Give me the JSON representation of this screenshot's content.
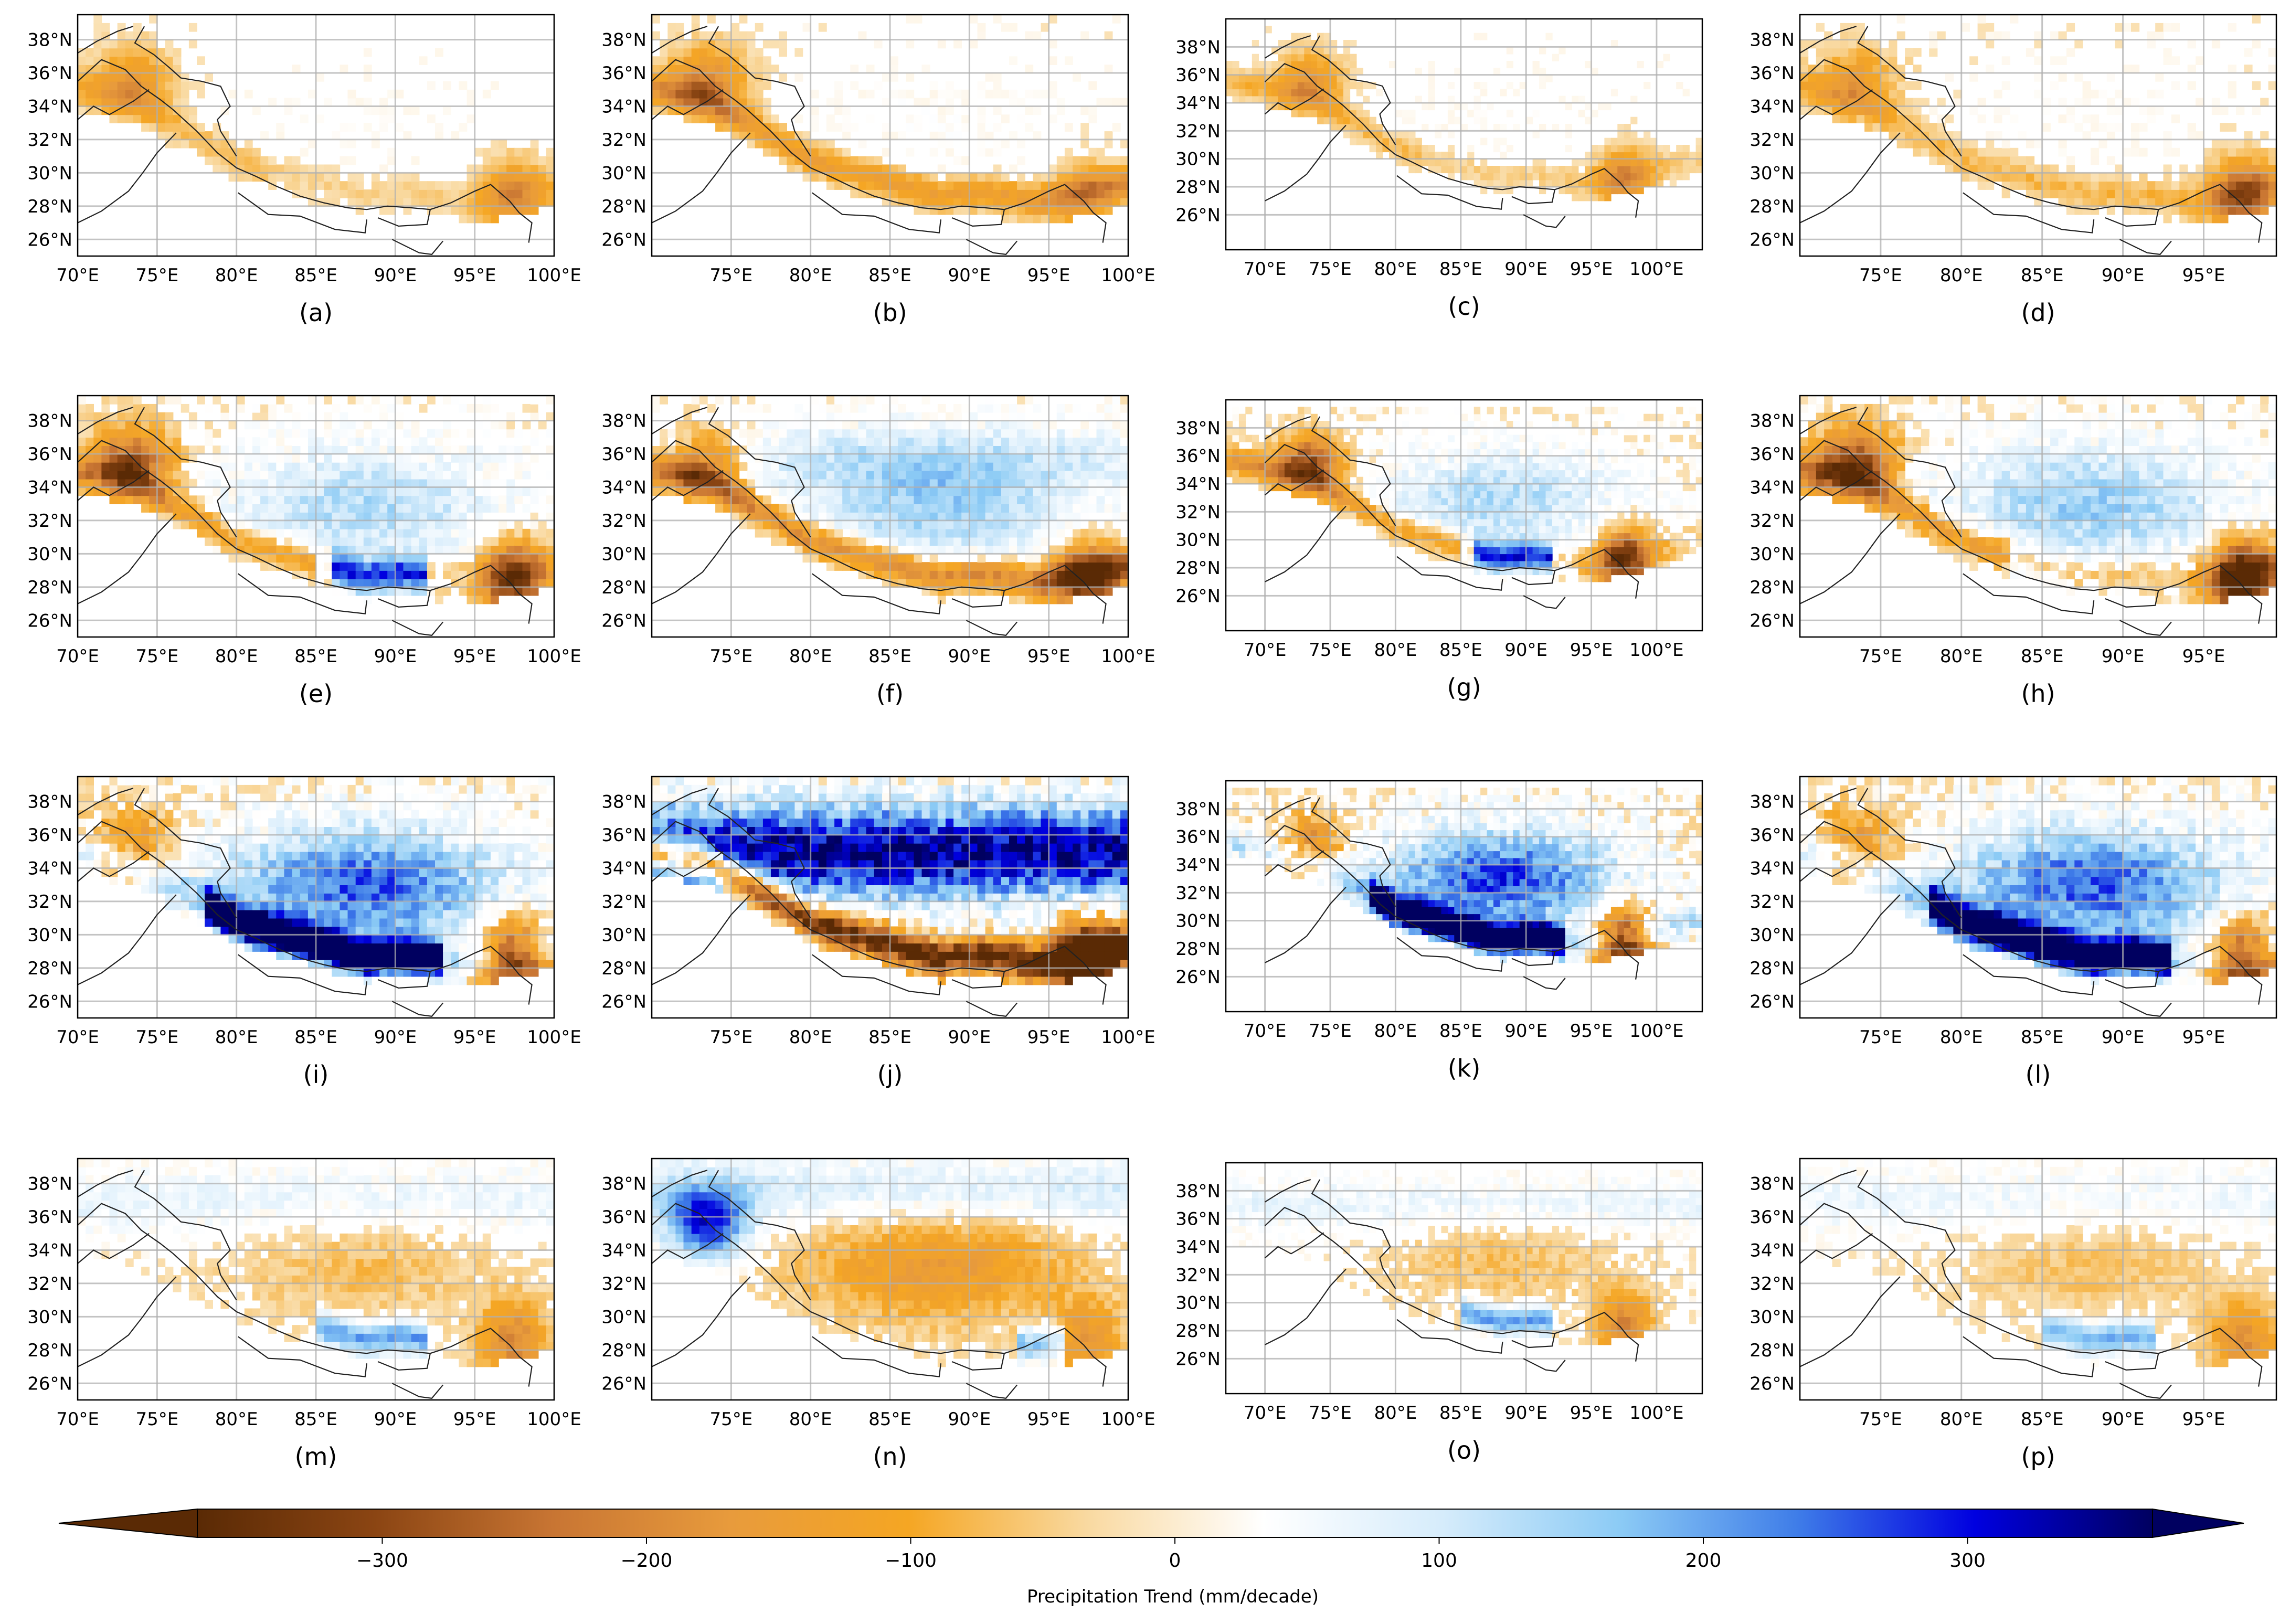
{
  "figure": {
    "panels": [
      {
        "label": "(a)",
        "lon": [
          70,
          100
        ],
        "lat": [
          25,
          39.5
        ],
        "xticks": [
          70,
          75,
          80,
          85,
          90,
          95,
          100
        ],
        "style": "dry_west_east",
        "strength": 0.85
      },
      {
        "label": "(b)",
        "lon": [
          70,
          100
        ],
        "lat": [
          25,
          39.5
        ],
        "xticks": [
          75,
          80,
          85,
          90,
          95,
          100
        ],
        "style": "dry_west",
        "strength": 1.0
      },
      {
        "label": "(c)",
        "lon": [
          67,
          103.5
        ],
        "lat": [
          23.5,
          40
        ],
        "xticks": [
          70,
          75,
          80,
          85,
          90,
          95,
          100
        ],
        "style": "dry_west_east",
        "strength": 0.9
      },
      {
        "label": "(d)",
        "lon": [
          70,
          99.5
        ],
        "lat": [
          25,
          39.5
        ],
        "xticks": [
          75,
          80,
          85,
          90,
          95
        ],
        "style": "dry_se",
        "strength": 1.0
      },
      {
        "label": "(e)",
        "lon": [
          70,
          100
        ],
        "lat": [
          25,
          39.5
        ],
        "xticks": [
          70,
          75,
          80,
          85,
          90,
          95,
          100
        ],
        "style": "mixed_dry",
        "strength": 1.2
      },
      {
        "label": "(f)",
        "lon": [
          70,
          100
        ],
        "lat": [
          25,
          39.5
        ],
        "xticks": [
          75,
          80,
          85,
          90,
          95,
          100
        ],
        "style": "wet_plateau",
        "strength": 1.1
      },
      {
        "label": "(g)",
        "lon": [
          67,
          103.5
        ],
        "lat": [
          23.5,
          40
        ],
        "xticks": [
          70,
          75,
          80,
          85,
          90,
          95,
          100
        ],
        "style": "mixed_dry",
        "strength": 1.2
      },
      {
        "label": "(h)",
        "lon": [
          70,
          99.5
        ],
        "lat": [
          25,
          39.5
        ],
        "xticks": [
          75,
          80,
          85,
          90,
          95
        ],
        "style": "dry_se_wet",
        "strength": 1.3
      },
      {
        "label": "(i)",
        "lon": [
          70,
          100
        ],
        "lat": [
          25,
          39.5
        ],
        "xticks": [
          70,
          75,
          80,
          85,
          90,
          95,
          100
        ],
        "style": "wet_south",
        "strength": 1.4
      },
      {
        "label": "(j)",
        "lon": [
          70,
          100
        ],
        "lat": [
          25,
          39.5
        ],
        "xticks": [
          75,
          80,
          85,
          90,
          95,
          100
        ],
        "style": "wet_north_dry_south",
        "strength": 1.5
      },
      {
        "label": "(k)",
        "lon": [
          67,
          103.5
        ],
        "lat": [
          23.5,
          40
        ],
        "xticks": [
          70,
          75,
          80,
          85,
          90,
          95,
          100
        ],
        "style": "wet_south",
        "strength": 1.5
      },
      {
        "label": "(l)",
        "lon": [
          70,
          99.5
        ],
        "lat": [
          25,
          39.5
        ],
        "xticks": [
          75,
          80,
          85,
          90,
          95
        ],
        "style": "wet_south",
        "strength": 1.4
      },
      {
        "label": "(m)",
        "lon": [
          70,
          100
        ],
        "lat": [
          25,
          39.5
        ],
        "xticks": [
          70,
          75,
          80,
          85,
          90,
          95,
          100
        ],
        "style": "light_mixed",
        "strength": 1.0
      },
      {
        "label": "(n)",
        "lon": [
          70,
          100
        ],
        "lat": [
          25,
          39.5
        ],
        "xticks": [
          75,
          80,
          85,
          90,
          95,
          100
        ],
        "style": "wet_west_dry_center",
        "strength": 1.1
      },
      {
        "label": "(o)",
        "lon": [
          67,
          103.5
        ],
        "lat": [
          23.5,
          40
        ],
        "xticks": [
          70,
          75,
          80,
          85,
          90,
          95,
          100
        ],
        "style": "light_mixed",
        "strength": 1.0
      },
      {
        "label": "(p)",
        "lon": [
          70,
          99.5
        ],
        "lat": [
          25,
          39.5
        ],
        "xticks": [
          75,
          80,
          85,
          90,
          95
        ],
        "style": "light_mixed",
        "strength": 0.9
      }
    ],
    "yticks": [
      26,
      28,
      30,
      32,
      34,
      36,
      38
    ],
    "colorbar": {
      "label": "Precipitation Trend (mm/decade)",
      "ticks": [
        -300,
        -200,
        -100,
        0,
        100,
        200,
        300
      ],
      "vmin": -370,
      "vmax": 370,
      "colors": [
        "#5a2a05",
        "#8b4513",
        "#c87533",
        "#e89b3c",
        "#f5a623",
        "#f9d9a0",
        "#ffffff",
        "#d6ecfb",
        "#8ccbf5",
        "#3f7de8",
        "#0000e0",
        "#000060"
      ]
    }
  },
  "chart_data": [
    {
      "type": "heatmap",
      "title": "(a)",
      "xlabel": "",
      "ylabel": "",
      "xlim": [
        70,
        100
      ],
      "ylim": [
        25,
        39.5
      ],
      "xticklabels": [
        "70°E",
        "75°E",
        "80°E",
        "85°E",
        "90°E",
        "95°E",
        "100°E"
      ],
      "yticklabels": [
        "26°N",
        "28°N",
        "30°N",
        "32°N",
        "34°N",
        "36°N",
        "38°N"
      ],
      "summary": "drying (orange) in western Himalaya/Karakoram and southeastern Tibet; weak changes elsewhere"
    },
    {
      "type": "heatmap",
      "title": "(b)",
      "xlim": [
        70,
        100
      ],
      "ylim": [
        25,
        39.5
      ],
      "xticklabels": [
        "75°E",
        "80°E",
        "85°E",
        "90°E",
        "95°E",
        "100°E"
      ],
      "yticklabels": [
        "26°N",
        "28°N",
        "30°N",
        "32°N",
        "34°N",
        "36°N",
        "38°N"
      ],
      "summary": "drying along the whole Himalayan arc"
    },
    {
      "type": "heatmap",
      "title": "(c)",
      "xlim": [
        67,
        103.5
      ],
      "ylim": [
        23.5,
        40
      ],
      "xticklabels": [
        "70°E",
        "75°E",
        "80°E",
        "85°E",
        "90°E",
        "95°E",
        "100°E"
      ],
      "yticklabels": [
        "26°N",
        "28°N",
        "30°N",
        "32°N",
        "34°N",
        "36°N",
        "38°N"
      ],
      "summary": "drying in west and southeast"
    },
    {
      "type": "heatmap",
      "title": "(d)",
      "xlim": [
        70,
        99.5
      ],
      "ylim": [
        25,
        39.5
      ],
      "xticklabels": [
        "75°E",
        "80°E",
        "85°E",
        "90°E",
        "95°E"
      ],
      "yticklabels": [
        "26°N",
        "28°N",
        "30°N",
        "32°N",
        "34°N",
        "36°N",
        "38°N"
      ],
      "summary": "strong drying in southeast, drying in west"
    },
    {
      "type": "heatmap",
      "title": "(e)",
      "xlim": [
        70,
        100
      ],
      "ylim": [
        25,
        39.5
      ],
      "xticklabels": [
        "70°E",
        "75°E",
        "80°E",
        "85°E",
        "90°E",
        "95°E",
        "100°E"
      ],
      "yticklabels": [
        "26°N",
        "28°N",
        "30°N",
        "32°N",
        "34°N",
        "36°N",
        "38°N"
      ],
      "summary": "drying west and southeast, wetting over central plateau"
    },
    {
      "type": "heatmap",
      "title": "(f)",
      "xlim": [
        70,
        100
      ],
      "ylim": [
        25,
        39.5
      ],
      "xticklabels": [
        "75°E",
        "80°E",
        "85°E",
        "90°E",
        "95°E",
        "100°E"
      ],
      "yticklabels": [
        "26°N",
        "28°N",
        "30°N",
        "32°N",
        "34°N",
        "36°N",
        "38°N"
      ],
      "summary": "wetting over plateau, drying along southern rim"
    },
    {
      "type": "heatmap",
      "title": "(g)",
      "xlim": [
        67,
        103.5
      ],
      "ylim": [
        23.5,
        40
      ],
      "xticklabels": [
        "70°E",
        "75°E",
        "80°E",
        "85°E",
        "90°E",
        "95°E",
        "100°E"
      ],
      "yticklabels": [
        "26°N",
        "28°N",
        "30°N",
        "32°N",
        "34°N",
        "36°N",
        "38°N"
      ],
      "summary": "strong drying in western Himalaya, wetting on plateau"
    },
    {
      "type": "heatmap",
      "title": "(h)",
      "xlim": [
        70,
        99.5
      ],
      "ylim": [
        25,
        39.5
      ],
      "xticklabels": [
        "75°E",
        "80°E",
        "85°E",
        "90°E",
        "95°E"
      ],
      "yticklabels": [
        "26°N",
        "28°N",
        "30°N",
        "32°N",
        "34°N",
        "36°N",
        "38°N"
      ],
      "summary": "strong drying in southeast and west, wetting center"
    },
    {
      "type": "heatmap",
      "title": "(i)",
      "xlim": [
        70,
        100
      ],
      "ylim": [
        25,
        39.5
      ],
      "xticklabels": [
        "70°E",
        "75°E",
        "80°E",
        "85°E",
        "90°E",
        "95°E",
        "100°E"
      ],
      "yticklabels": [
        "26°N",
        "28°N",
        "30°N",
        "32°N",
        "34°N",
        "36°N",
        "38°N"
      ],
      "summary": "wetting over plateau with strong wetting along southern Himalaya"
    },
    {
      "type": "heatmap",
      "title": "(j)",
      "xlim": [
        70,
        100
      ],
      "ylim": [
        25,
        39.5
      ],
      "xticklabels": [
        "75°E",
        "80°E",
        "85°E",
        "90°E",
        "95°E",
        "100°E"
      ],
      "yticklabels": [
        "26°N",
        "28°N",
        "30°N",
        "32°N",
        "34°N",
        "36°N",
        "38°N"
      ],
      "summary": "strong wetting in north, strong drying along southern rim"
    },
    {
      "type": "heatmap",
      "title": "(k)",
      "xlim": [
        67,
        103.5
      ],
      "ylim": [
        23.5,
        40
      ],
      "xticklabels": [
        "70°E",
        "75°E",
        "80°E",
        "85°E",
        "90°E",
        "95°E",
        "100°E"
      ],
      "yticklabels": [
        "26°N",
        "28°N",
        "30°N",
        "32°N",
        "34°N",
        "36°N",
        "38°N"
      ],
      "summary": "strong wetting in south-central Himalaya, drying in east"
    },
    {
      "type": "heatmap",
      "title": "(l)",
      "xlim": [
        70,
        99.5
      ],
      "ylim": [
        25,
        39.5
      ],
      "xticklabels": [
        "75°E",
        "80°E",
        "85°E",
        "90°E",
        "95°E"
      ],
      "yticklabels": [
        "26°N",
        "28°N",
        "30°N",
        "32°N",
        "34°N",
        "36°N",
        "38°N"
      ],
      "summary": "wetting over most of plateau, drying in far southeast"
    },
    {
      "type": "heatmap",
      "title": "(m)",
      "xlim": [
        70,
        100
      ],
      "ylim": [
        25,
        39.5
      ],
      "xticklabels": [
        "70°E",
        "75°E",
        "80°E",
        "85°E",
        "90°E",
        "95°E",
        "100°E"
      ],
      "yticklabels": [
        "26°N",
        "28°N",
        "30°N",
        "32°N",
        "34°N",
        "36°N",
        "38°N"
      ],
      "summary": "weak mixed trends, drying in southeast"
    },
    {
      "type": "heatmap",
      "title": "(n)",
      "xlim": [
        70,
        100
      ],
      "ylim": [
        25,
        39.5
      ],
      "xticklabels": [
        "75°E",
        "80°E",
        "85°E",
        "90°E",
        "95°E",
        "100°E"
      ],
      "yticklabels": [
        "26°N",
        "28°N",
        "30°N",
        "32°N",
        "34°N",
        "36°N",
        "38°N"
      ],
      "summary": "wetting in west, drying over central plateau"
    },
    {
      "type": "heatmap",
      "title": "(o)",
      "xlim": [
        67,
        103.5
      ],
      "ylim": [
        23.5,
        40
      ],
      "xticklabels": [
        "70°E",
        "75°E",
        "80°E",
        "85°E",
        "90°E",
        "95°E",
        "100°E"
      ],
      "yticklabels": [
        "26°N",
        "28°N",
        "30°N",
        "32°N",
        "34°N",
        "36°N",
        "38°N"
      ],
      "summary": "weak mixed trends"
    },
    {
      "type": "heatmap",
      "title": "(p)",
      "xlim": [
        70,
        99.5
      ],
      "ylim": [
        25,
        39.5
      ],
      "xticklabels": [
        "75°E",
        "80°E",
        "85°E",
        "90°E",
        "95°E"
      ],
      "yticklabels": [
        "26°N",
        "28°N",
        "30°N",
        "32°N",
        "34°N",
        "36°N",
        "38°N"
      ],
      "summary": "weak mixed trends"
    }
  ]
}
